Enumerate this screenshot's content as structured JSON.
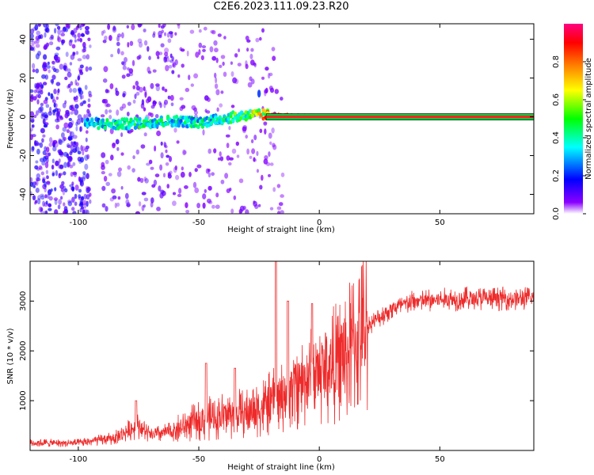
{
  "title": "C2E6.2023.111.09.23.R20",
  "colors": {
    "snr_line": "#ee2a2a",
    "axis": "#000000",
    "background": "#ffffff",
    "colormap": [
      "#ffffff",
      "#8b00ff",
      "#0000ff",
      "#00ffff",
      "#00ff00",
      "#ffff00",
      "#ff7f00",
      "#ff0000",
      "#ff0080"
    ]
  },
  "chart_data": [
    {
      "type": "heatmap",
      "title": "",
      "xlabel": "Height of straight line (km)",
      "ylabel": "Frequency (Hz)",
      "xlim": [
        -120,
        89
      ],
      "ylim": [
        -50,
        48
      ],
      "xticks": [
        -100,
        -50,
        0,
        50
      ],
      "yticks": [
        -40,
        -20,
        0,
        20,
        40
      ],
      "colorbar": {
        "label": "Normalized spectral amplitude",
        "range": [
          0.0,
          1.0
        ],
        "ticks": [
          "0.0",
          "0.2",
          "0.4",
          "0.6",
          "0.8"
        ]
      },
      "ridge": [
        {
          "x": -97,
          "f": -3,
          "amp": 0.4
        },
        {
          "x": -85,
          "f": -4,
          "amp": 0.45
        },
        {
          "x": -72,
          "f": -3,
          "amp": 0.5
        },
        {
          "x": -60,
          "f": -2,
          "amp": 0.45
        },
        {
          "x": -50,
          "f": -3,
          "amp": 0.45
        },
        {
          "x": -40,
          "f": -1,
          "amp": 0.5
        },
        {
          "x": -30,
          "f": 1,
          "amp": 0.6
        },
        {
          "x": -22,
          "f": 1,
          "amp": 0.85
        },
        {
          "x": 0,
          "f": 0,
          "amp": 0.9
        },
        {
          "x": 89,
          "f": 0,
          "amp": 0.9
        }
      ]
    },
    {
      "type": "line",
      "title": "",
      "xlabel": "Height of straight line (km)",
      "ylabel": "SNR (10 * v/v)",
      "xlim": [
        -120,
        89
      ],
      "ylim": [
        0,
        3800
      ],
      "xticks": [
        -100,
        -50,
        0,
        50
      ],
      "yticks": [
        1000,
        2000,
        3000
      ],
      "trend": [
        {
          "x": -120,
          "y": 150
        },
        {
          "x": -100,
          "y": 150
        },
        {
          "x": -85,
          "y": 250
        },
        {
          "x": -75,
          "y": 500
        },
        {
          "x": -70,
          "y": 300
        },
        {
          "x": -60,
          "y": 400
        },
        {
          "x": -50,
          "y": 600
        },
        {
          "x": -40,
          "y": 700
        },
        {
          "x": -30,
          "y": 750
        },
        {
          "x": -20,
          "y": 950
        },
        {
          "x": -10,
          "y": 1300
        },
        {
          "x": 0,
          "y": 1550
        },
        {
          "x": 10,
          "y": 1850
        },
        {
          "x": 20,
          "y": 2500
        },
        {
          "x": 30,
          "y": 2850
        },
        {
          "x": 40,
          "y": 3000
        },
        {
          "x": 60,
          "y": 3050
        },
        {
          "x": 89,
          "y": 3050
        }
      ],
      "spikes": [
        {
          "x": -76,
          "y": 1000
        },
        {
          "x": -47,
          "y": 1750
        },
        {
          "x": -35,
          "y": 1650
        },
        {
          "x": -18,
          "y": 3800
        },
        {
          "x": -13,
          "y": 3000
        },
        {
          "x": -3,
          "y": 2950
        }
      ]
    }
  ]
}
